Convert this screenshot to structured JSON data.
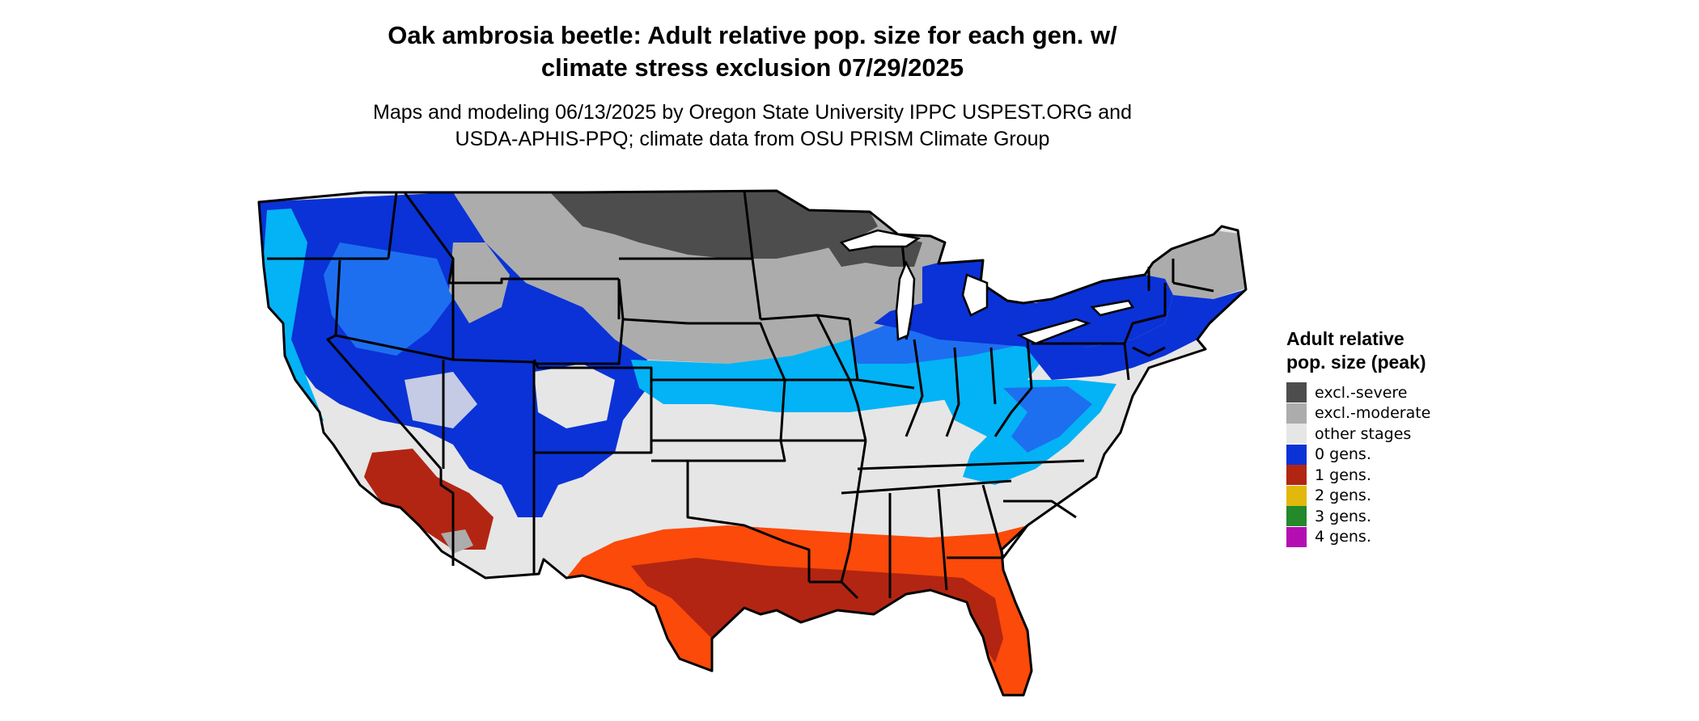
{
  "title_line1": "Oak ambrosia beetle: Adult relative pop. size for each gen. w/",
  "title_line2": "climate stress exclusion 07/29/2025",
  "subtitle_line1": "Maps and modeling 06/13/2025 by Oregon State University IPPC USPEST.ORG and",
  "subtitle_line2": "USDA-APHIS-PPQ; climate data from OSU PRISM Climate Group",
  "legend": {
    "title": "Adult relative pop. size (peak)",
    "items": [
      {
        "label": "excl.-severe",
        "color": "#4d4d4d"
      },
      {
        "label": "excl.-moderate",
        "color": "#acacac"
      },
      {
        "label": "other stages",
        "color": "#e6e6e6"
      },
      {
        "label": "0 gens.",
        "color": "#0a32d6"
      },
      {
        "label": "1 gens.",
        "color": "#b22512"
      },
      {
        "label": "2 gens.",
        "color": "#e2b80c"
      },
      {
        "label": "3 gens.",
        "color": "#23892a"
      },
      {
        "label": "4 gens.",
        "color": "#b40eb3"
      }
    ]
  },
  "map_colors": {
    "severe": "#4d4d4d",
    "moderate": "#acacac",
    "other": "#e6e6e6",
    "blue_dark": "#0a32d6",
    "blue_mid": "#1d6ff0",
    "blue_light": "#03b3f5",
    "orange": "#fb4a0a",
    "red_dark": "#b22512"
  }
}
